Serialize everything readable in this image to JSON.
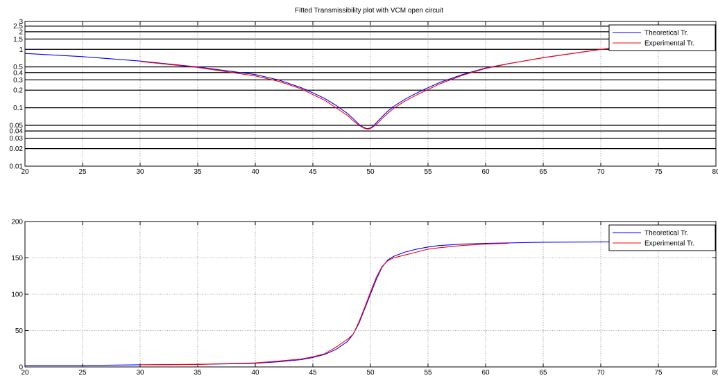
{
  "chart_data": [
    {
      "type": "line",
      "title": "Fitted Transmissibility plot with VCM open circuit",
      "xlabel": "",
      "ylabel": "",
      "xlim": [
        20,
        80
      ],
      "ylim": [
        0.01,
        3
      ],
      "yscale": "log",
      "grid": true,
      "legend_position": "top-right",
      "xticks": [
        20,
        25,
        30,
        35,
        40,
        45,
        50,
        55,
        60,
        65,
        70,
        75,
        80
      ],
      "yticks": [
        0.01,
        0.02,
        0.03,
        0.04,
        0.05,
        0.1,
        0.2,
        0.3,
        0.4,
        0.5,
        1,
        1.5,
        2,
        2.5,
        3
      ],
      "ytick_labels": [
        "0.01",
        "0.02",
        "0.03",
        "0.04",
        "0.05",
        "0.1",
        "0.2",
        "0.3",
        "0.4",
        "0.5",
        "1",
        "1.5",
        "2",
        "2.5",
        "3"
      ],
      "series": [
        {
          "name": "Theoretical Tr.",
          "color": "#0000ff",
          "x": [
            20,
            25,
            30,
            35,
            40,
            42,
            44,
            45,
            46,
            47,
            48,
            48.5,
            49,
            49.4,
            49.7,
            50,
            50.3,
            50.6,
            51,
            51.5,
            52,
            53,
            54,
            55,
            56,
            58,
            60,
            62,
            65,
            70,
            75,
            80
          ],
          "y": [
            0.85,
            0.75,
            0.63,
            0.5,
            0.37,
            0.3,
            0.22,
            0.18,
            0.145,
            0.11,
            0.08,
            0.065,
            0.052,
            0.046,
            0.044,
            0.045,
            0.05,
            0.058,
            0.07,
            0.087,
            0.105,
            0.14,
            0.178,
            0.22,
            0.27,
            0.37,
            0.48,
            0.57,
            0.72,
            1.0,
            1.3,
            1.62
          ]
        },
        {
          "name": "Experimental Tr.",
          "color": "#ff0000",
          "x": [
            30,
            35,
            40,
            42,
            44,
            45,
            46,
            47,
            48,
            48.5,
            49,
            49.5,
            49.8,
            50,
            50.3,
            50.7,
            51,
            51.5,
            52,
            53,
            54,
            55,
            56,
            58,
            60,
            62,
            65,
            70,
            72
          ],
          "y": [
            0.62,
            0.49,
            0.35,
            0.285,
            0.21,
            0.168,
            0.135,
            0.1,
            0.074,
            0.06,
            0.05,
            0.044,
            0.043,
            0.044,
            0.048,
            0.056,
            0.065,
            0.08,
            0.097,
            0.13,
            0.165,
            0.205,
            0.255,
            0.36,
            0.47,
            0.57,
            0.72,
            1.0,
            1.08
          ]
        }
      ]
    },
    {
      "type": "line",
      "title": "",
      "xlabel": "",
      "ylabel": "",
      "xlim": [
        20,
        80
      ],
      "ylim": [
        0,
        200
      ],
      "grid": true,
      "legend_position": "top-right",
      "xticks": [
        20,
        25,
        30,
        35,
        40,
        45,
        50,
        55,
        60,
        65,
        70,
        75,
        80
      ],
      "yticks": [
        0,
        50,
        100,
        150,
        200
      ],
      "series": [
        {
          "name": "Theoretical Tr.",
          "color": "#0000ff",
          "x": [
            20,
            25,
            30,
            35,
            40,
            42,
            44,
            45,
            46,
            47,
            48,
            48.5,
            49,
            49.5,
            50,
            50.5,
            51,
            51.5,
            52,
            53,
            54,
            55,
            56,
            58,
            60,
            65,
            70,
            75,
            80
          ],
          "y": [
            2,
            2,
            3,
            3.5,
            5,
            7,
            10,
            13,
            17,
            24,
            35,
            45,
            60,
            80,
            100,
            120,
            137,
            147,
            152,
            158,
            162,
            165,
            167,
            169,
            170,
            171.5,
            172,
            172.5,
            173
          ]
        },
        {
          "name": "Experimental Tr.",
          "color": "#ff0000",
          "x": [
            30,
            35,
            40,
            42,
            44,
            45,
            46,
            47,
            48,
            48.5,
            49,
            49.5,
            50,
            50.5,
            51,
            51.5,
            52,
            53,
            54,
            55,
            56,
            58,
            60,
            62
          ],
          "y": [
            3,
            3.5,
            5.5,
            8,
            11,
            14,
            18,
            27,
            38,
            45,
            62,
            82,
            103,
            123,
            138,
            146,
            150,
            154,
            158,
            162,
            164,
            167,
            169,
            170
          ]
        }
      ]
    }
  ]
}
